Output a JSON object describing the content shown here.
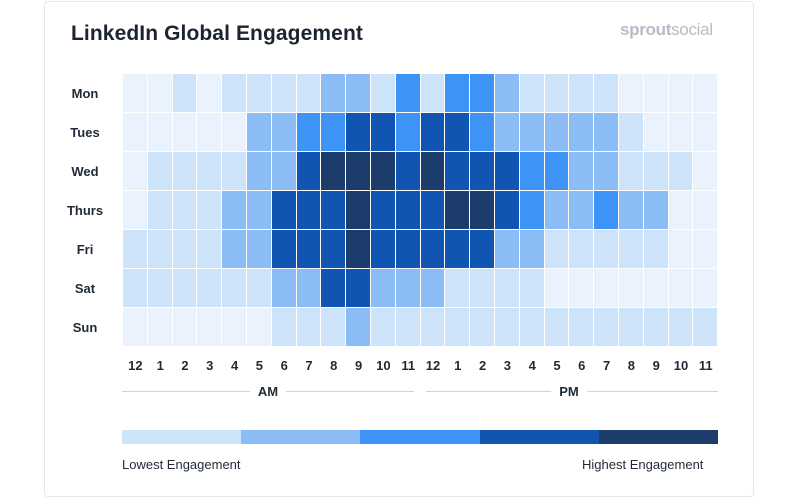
{
  "header": {
    "title": "LinkedIn Global Engagement",
    "brand_bold": "sprout",
    "brand_light": "social"
  },
  "colors": {
    "levels": [
      "#eaf3fd",
      "#cde3fa",
      "#8cbcf6",
      "#3d93f6",
      "#1155b2",
      "#1c3d6c"
    ],
    "grid_line": "#ffffff"
  },
  "chart_data": {
    "type": "heatmap",
    "title": "LinkedIn Global Engagement",
    "rows": [
      "Mon",
      "Tues",
      "Wed",
      "Thurs",
      "Fri",
      "Sat",
      "Sun"
    ],
    "columns": [
      "12",
      "1",
      "2",
      "3",
      "4",
      "5",
      "6",
      "7",
      "8",
      "9",
      "10",
      "11",
      "12",
      "1",
      "2",
      "3",
      "4",
      "5",
      "6",
      "7",
      "8",
      "9",
      "10",
      "11"
    ],
    "value_scale": "0 = lowest engagement, 5 = highest engagement",
    "values": [
      [
        0,
        0,
        1,
        0,
        1,
        1,
        1,
        1,
        2,
        2,
        1,
        3,
        1,
        3,
        3,
        2,
        1,
        1,
        1,
        1,
        0,
        0,
        0,
        0
      ],
      [
        0,
        0,
        0,
        0,
        0,
        2,
        2,
        3,
        3,
        4,
        4,
        3,
        4,
        4,
        3,
        2,
        2,
        2,
        2,
        2,
        1,
        0,
        0,
        0
      ],
      [
        0,
        1,
        1,
        1,
        1,
        2,
        2,
        4,
        5,
        5,
        5,
        4,
        5,
        4,
        4,
        4,
        3,
        3,
        2,
        2,
        1,
        1,
        1,
        0
      ],
      [
        0,
        1,
        1,
        1,
        2,
        2,
        4,
        4,
        4,
        5,
        4,
        4,
        4,
        5,
        5,
        4,
        3,
        2,
        2,
        3,
        2,
        2,
        0,
        0
      ],
      [
        1,
        1,
        1,
        1,
        2,
        2,
        4,
        4,
        4,
        5,
        4,
        4,
        4,
        4,
        4,
        2,
        2,
        1,
        1,
        1,
        1,
        1,
        0,
        0
      ],
      [
        1,
        1,
        1,
        1,
        1,
        1,
        2,
        2,
        4,
        4,
        2,
        2,
        2,
        1,
        1,
        1,
        1,
        0,
        0,
        0,
        0,
        0,
        0,
        0
      ],
      [
        0,
        0,
        0,
        0,
        0,
        0,
        1,
        1,
        1,
        2,
        1,
        1,
        1,
        1,
        1,
        1,
        1,
        1,
        1,
        1,
        1,
        1,
        1,
        1
      ]
    ],
    "periods": [
      "AM",
      "PM"
    ],
    "legend": {
      "low_label": "Lowest Engagement",
      "high_label": "Highest Engagement",
      "steps": [
        "#cde3fa",
        "#8cbcf6",
        "#3d93f6",
        "#1155b2",
        "#1c3d6c"
      ]
    }
  }
}
